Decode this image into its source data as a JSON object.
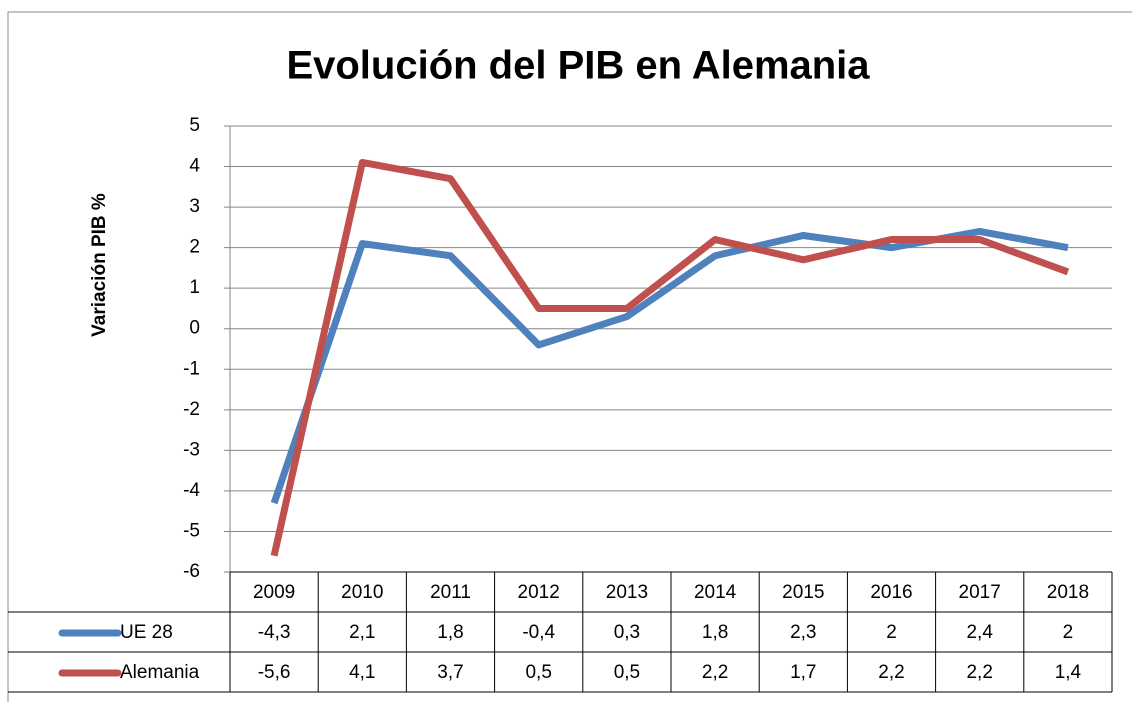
{
  "chart_data": {
    "type": "line",
    "title": "Evolución del PIB en Alemania",
    "y_label": "Variación PIB %",
    "categories": [
      "2009",
      "2010",
      "2011",
      "2012",
      "2013",
      "2014",
      "2015",
      "2016",
      "2017",
      "2018"
    ],
    "series": [
      {
        "name": "UE 28",
        "color": "#4f81bd",
        "values": [
          -4.3,
          2.1,
          1.8,
          -0.4,
          0.3,
          1.8,
          2.3,
          2,
          2.4,
          2
        ],
        "value_labels": [
          "-4,3",
          "2,1",
          "1,8",
          "-0,4",
          "0,3",
          "1,8",
          "2,3",
          "2",
          "2,4",
          "2"
        ]
      },
      {
        "name": "Alemania",
        "color": "#c0504d",
        "values": [
          -5.6,
          4.1,
          3.7,
          0.5,
          0.5,
          2.2,
          1.7,
          2.2,
          2.2,
          1.4
        ],
        "value_labels": [
          "-5,6",
          "4,1",
          "3,7",
          "0,5",
          "0,5",
          "2,2",
          "1,7",
          "2,2",
          "2,2",
          "1,4"
        ]
      }
    ],
    "ylim": [
      -6,
      5
    ],
    "yticks": [
      -6,
      -5,
      -4,
      -3,
      -2,
      -1,
      0,
      1,
      2,
      3,
      4,
      5
    ],
    "grid": true,
    "data_table": true
  }
}
